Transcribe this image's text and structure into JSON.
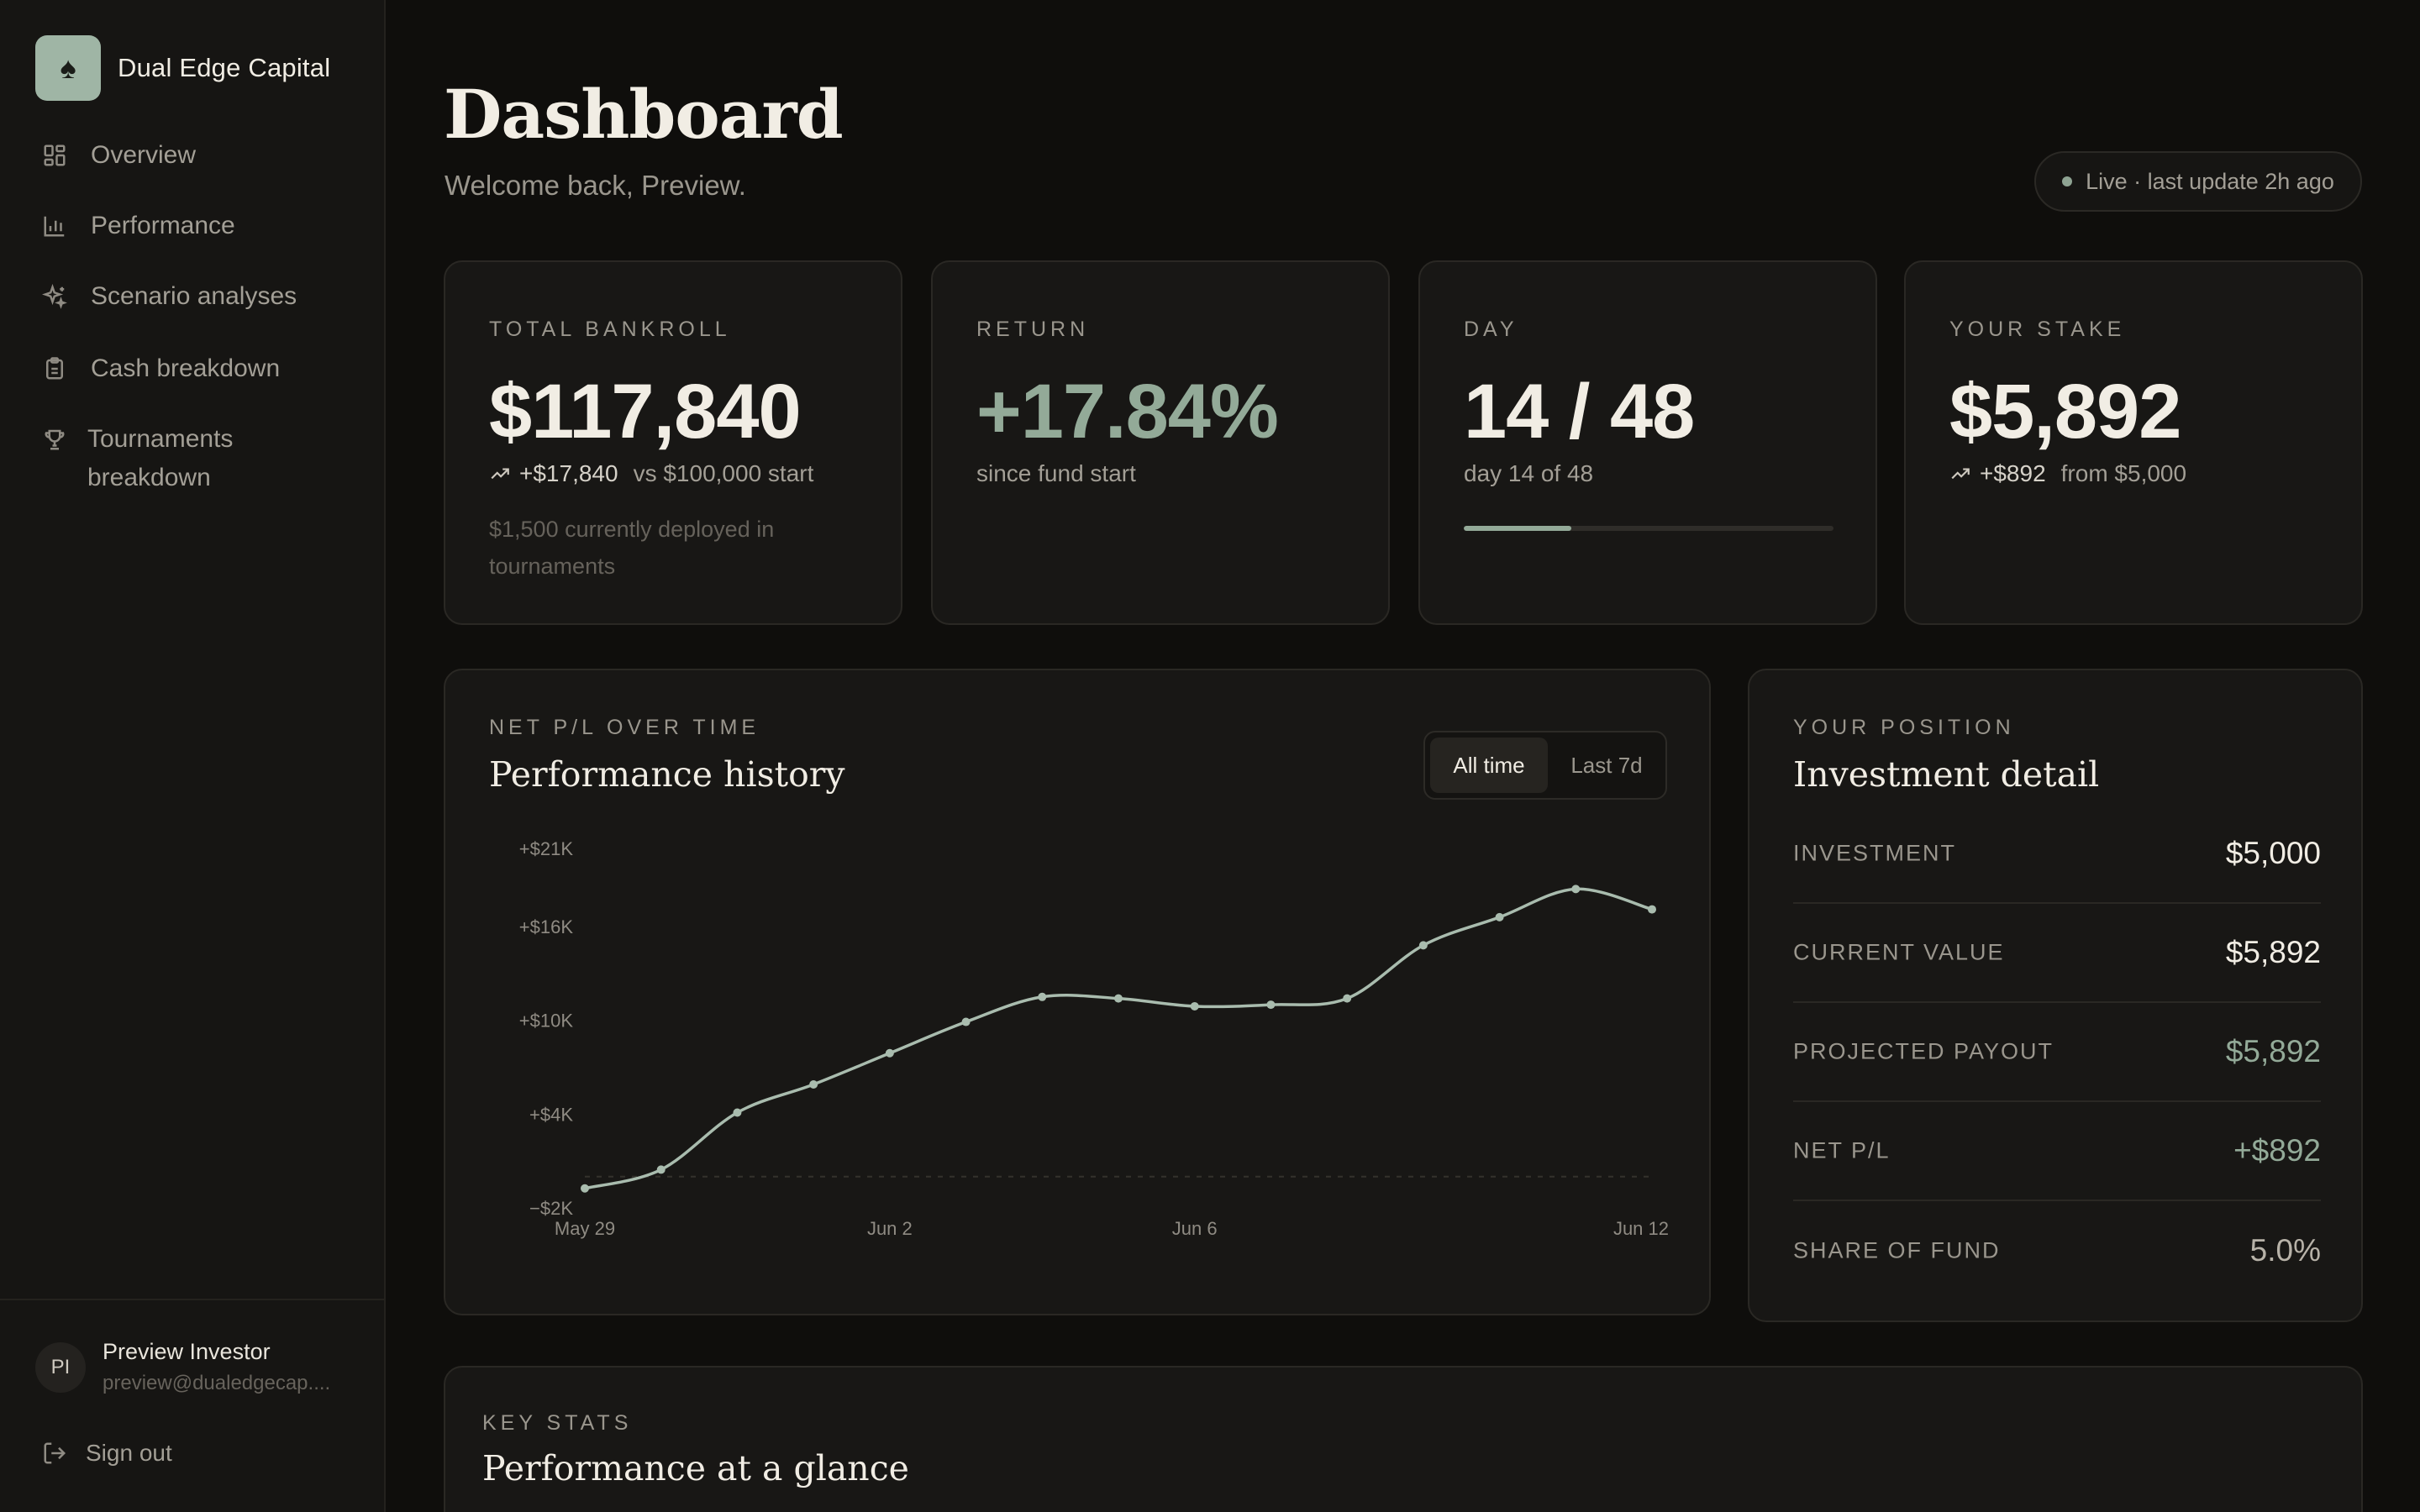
{
  "brand": {
    "name": "Dual Edge Capital",
    "logo_icon": "spade-icon",
    "logo_glyph": "♠"
  },
  "sidebar": {
    "items": [
      {
        "label": "Overview",
        "icon": "grid-icon"
      },
      {
        "label": "Performance",
        "icon": "bar-chart-icon"
      },
      {
        "label": "Scenario analyses",
        "icon": "sparkle-icon"
      },
      {
        "label": "Cash breakdown",
        "icon": "clipboard-icon"
      },
      {
        "label": "Tournaments breakdown",
        "icon": "trophy-icon"
      }
    ]
  },
  "user": {
    "initials": "PI",
    "name": "Preview Investor",
    "email": "preview@dualedgecap...."
  },
  "signout_label": "Sign out",
  "header": {
    "title": "Dashboard",
    "subtitle": "Welcome back, Preview.",
    "live_badge": "Live · last update 2h ago"
  },
  "kpis": {
    "bankroll": {
      "label": "TOTAL BANKROLL",
      "value": "$117,840",
      "delta": "+$17,840",
      "delta_text": "vs $100,000 start",
      "note": "$1,500 currently deployed in tournaments"
    },
    "return": {
      "label": "RETURN",
      "value": "+17.84%",
      "sub": "since fund start"
    },
    "day": {
      "label": "DAY",
      "value": "14 / 48",
      "sub": "day 14 of 48",
      "progress": 0.2917
    },
    "stake": {
      "label": "YOUR STAKE",
      "value": "$5,892",
      "delta": "+$892",
      "delta_text": "from $5,000"
    }
  },
  "performance": {
    "label": "NET P/L OVER TIME",
    "title": "Performance history",
    "toggle": {
      "all_time": "All time",
      "last_7d": "Last 7d"
    }
  },
  "chart_data": {
    "type": "line",
    "x": [
      "May 29",
      "May 30",
      "May 31",
      "Jun 1",
      "Jun 2",
      "Jun 3",
      "Jun 4",
      "Jun 5",
      "Jun 6",
      "Jun 7",
      "Jun 8",
      "Jun 9",
      "Jun 10",
      "Jun 11",
      "Jun 12"
    ],
    "series": [
      {
        "values": [
          -750,
          450,
          4100,
          5900,
          7900,
          9900,
          11500,
          11400,
          10900,
          11000,
          11400,
          14800,
          16600,
          18400,
          17100
        ]
      }
    ],
    "y_ticks": [
      "+$21K",
      "+$16K",
      "+$10K",
      "+$4K",
      "−$2K"
    ],
    "y_tick_values": [
      21000,
      16000,
      10000,
      4000,
      -2000
    ],
    "x_ticks": [
      "May 29",
      "Jun 2",
      "Jun 6",
      "Jun 12"
    ],
    "ylim": [
      -2000,
      21000
    ],
    "zero_line": 0,
    "grid": false,
    "line_color": "#a9bcae"
  },
  "position": {
    "label": "YOUR POSITION",
    "title": "Investment detail",
    "rows": [
      {
        "label": "INVESTMENT",
        "value": "$5,000"
      },
      {
        "label": "CURRENT VALUE",
        "value": "$5,892"
      },
      {
        "label": "PROJECTED PAYOUT",
        "value": "$5,892"
      },
      {
        "label": "NET P/L",
        "value": "+$892"
      },
      {
        "label": "SHARE OF FUND",
        "value": "5.0%"
      }
    ]
  },
  "key_stats": {
    "label": "KEY STATS",
    "title": "Performance at a glance"
  }
}
